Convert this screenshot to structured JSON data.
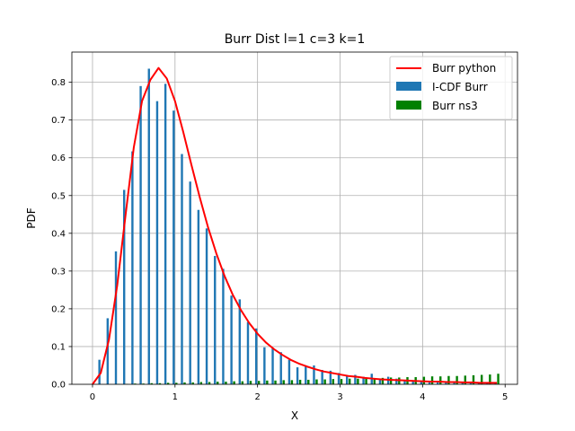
{
  "chart_data": {
    "type": "bar",
    "title": "Burr Dist l=1 c=3 k=1",
    "xlabel": "X",
    "ylabel": "PDF",
    "xlim": [
      -0.25,
      5.15
    ],
    "ylim": [
      0,
      0.88
    ],
    "xticks": [
      0,
      1,
      2,
      3,
      4,
      5
    ],
    "yticks": [
      0.0,
      0.1,
      0.2,
      0.3,
      0.4,
      0.5,
      0.6,
      0.7,
      0.8
    ],
    "grid": true,
    "legend_position": "upper right",
    "series": [
      {
        "name": "Burr python",
        "kind": "line",
        "color": "#ff0000",
        "x": [
          0.0,
          0.1,
          0.2,
          0.3,
          0.4,
          0.5,
          0.6,
          0.7,
          0.8,
          0.9,
          1.0,
          1.1,
          1.2,
          1.3,
          1.4,
          1.5,
          1.6,
          1.7,
          1.8,
          1.9,
          2.0,
          2.1,
          2.2,
          2.3,
          2.4,
          2.5,
          2.6,
          2.7,
          2.8,
          2.9,
          3.0,
          3.1,
          3.2,
          3.3,
          3.4,
          3.5,
          3.6,
          3.7,
          3.8,
          3.9,
          4.0,
          4.1,
          4.2,
          4.3,
          4.4,
          4.5,
          4.6,
          4.7,
          4.8,
          4.9
        ],
        "values": [
          0.0,
          0.03,
          0.119,
          0.263,
          0.447,
          0.627,
          0.75,
          0.806,
          0.838,
          0.81,
          0.75,
          0.668,
          0.58,
          0.495,
          0.416,
          0.347,
          0.287,
          0.237,
          0.196,
          0.162,
          0.134,
          0.111,
          0.093,
          0.078,
          0.065,
          0.055,
          0.047,
          0.04,
          0.034,
          0.03,
          0.026,
          0.022,
          0.02,
          0.017,
          0.015,
          0.013,
          0.012,
          0.011,
          0.01,
          0.009,
          0.008,
          0.007,
          0.007,
          0.006,
          0.006,
          0.005,
          0.005,
          0.004,
          0.004,
          0.004
        ]
      },
      {
        "name": "I-CDF Burr",
        "kind": "bar",
        "color": "#1f77b4",
        "x": [
          0.1,
          0.2,
          0.3,
          0.4,
          0.5,
          0.6,
          0.7,
          0.8,
          0.9,
          1.0,
          1.1,
          1.2,
          1.3,
          1.4,
          1.5,
          1.6,
          1.7,
          1.8,
          1.9,
          2.0,
          2.1,
          2.2,
          2.3,
          2.4,
          2.5,
          2.6,
          2.7,
          2.8,
          2.9,
          3.0,
          3.1,
          3.2,
          3.3,
          3.4,
          3.5,
          3.6,
          3.7,
          3.8,
          3.9,
          4.0,
          4.1,
          4.2,
          4.3,
          4.4,
          4.5,
          4.6,
          4.7,
          4.8,
          4.9
        ],
        "values": [
          0.065,
          0.175,
          0.352,
          0.515,
          0.617,
          0.79,
          0.836,
          0.75,
          0.796,
          0.725,
          0.61,
          0.537,
          0.462,
          0.413,
          0.34,
          0.306,
          0.235,
          0.225,
          0.165,
          0.148,
          0.098,
          0.097,
          0.085,
          0.065,
          0.045,
          0.05,
          0.05,
          0.038,
          0.036,
          0.03,
          0.023,
          0.025,
          0.02,
          0.028,
          0.015,
          0.02,
          0.015,
          0.01,
          0.008,
          0.008,
          0.006,
          0.008,
          0.005,
          0.005,
          0.005,
          0.004,
          0.004,
          0.003,
          0.003
        ]
      },
      {
        "name": "Burr ns3",
        "kind": "bar",
        "color": "#008000",
        "x": [
          0.0,
          0.1,
          0.2,
          0.3,
          0.4,
          0.5,
          0.6,
          0.7,
          0.8,
          0.9,
          1.0,
          1.1,
          1.2,
          1.3,
          1.4,
          1.5,
          1.6,
          1.7,
          1.8,
          1.9,
          2.0,
          2.1,
          2.2,
          2.3,
          2.4,
          2.5,
          2.6,
          2.7,
          2.8,
          2.9,
          3.0,
          3.1,
          3.2,
          3.3,
          3.4,
          3.5,
          3.6,
          3.7,
          3.8,
          3.9,
          4.0,
          4.1,
          4.2,
          4.3,
          4.4,
          4.5,
          4.6,
          4.7,
          4.8,
          4.9
        ],
        "values": [
          0.0,
          0.0,
          0.0,
          0.001,
          0.001,
          0.002,
          0.002,
          0.003,
          0.003,
          0.004,
          0.004,
          0.005,
          0.005,
          0.006,
          0.006,
          0.007,
          0.007,
          0.008,
          0.008,
          0.009,
          0.009,
          0.01,
          0.01,
          0.011,
          0.011,
          0.012,
          0.012,
          0.013,
          0.013,
          0.014,
          0.014,
          0.015,
          0.015,
          0.016,
          0.016,
          0.017,
          0.018,
          0.018,
          0.019,
          0.019,
          0.02,
          0.021,
          0.021,
          0.022,
          0.022,
          0.023,
          0.024,
          0.025,
          0.026,
          0.028
        ]
      }
    ]
  }
}
